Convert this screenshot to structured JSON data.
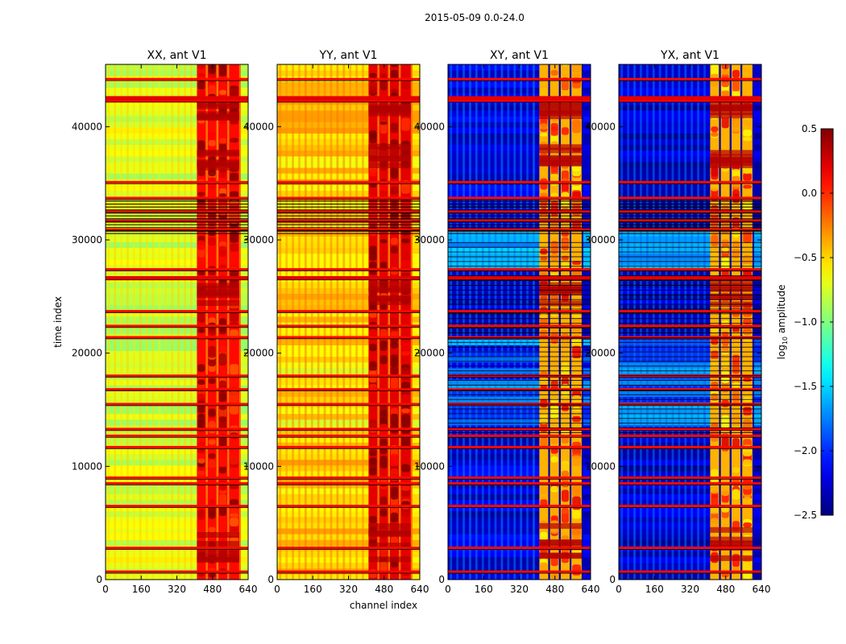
{
  "chart_data": {
    "type": "heatmap",
    "suptitle": "2015-05-09 0.0-24.0",
    "xlabel": "channel index",
    "ylabel": "time index",
    "xlim": [
      0,
      640
    ],
    "ylim": [
      0,
      45500
    ],
    "x_ticks": [
      "0",
      "160",
      "320",
      "480",
      "640"
    ],
    "y_ticks": [
      "0",
      "10000",
      "20000",
      "30000",
      "40000"
    ],
    "colormap": "jet",
    "panels": [
      {
        "title": "XX, ant V1",
        "base_level": -0.75,
        "hot_band_level": 0.1
      },
      {
        "title": "YY, ant V1",
        "base_level": -0.5,
        "hot_band_level": 0.2
      },
      {
        "title": "XY, ant V1",
        "base_level": -2.25,
        "hot_band_level": -0.4
      },
      {
        "title": "YX, ant V1",
        "base_level": -2.3,
        "hot_band_level": -0.4
      }
    ],
    "hot_channel_range": [
      410,
      600
    ],
    "horizontal_artifact_rows": [
      700,
      2800,
      6500,
      8500,
      9000,
      11700,
      12700,
      13300,
      15500,
      16800,
      18000,
      21400,
      22400,
      23700,
      26600,
      27400,
      30900,
      31700,
      32500,
      33700,
      35100,
      42300,
      44200
    ],
    "colorbar": {
      "label": "log10 amplitude",
      "label_base": "log",
      "label_sub": "10",
      "label_rest": " amplitude",
      "min": -2.5,
      "max": 0.5,
      "ticks": [
        "−2.5",
        "−2.0",
        "−1.5",
        "−1.0",
        "−0.5",
        "0.0",
        "0.5"
      ]
    }
  },
  "colors": {
    "jet_low": "#00007f",
    "jet_mid": "#7fff7f",
    "jet_high": "#7f0000"
  }
}
